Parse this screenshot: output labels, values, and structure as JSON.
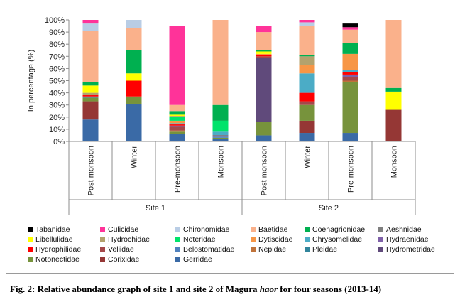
{
  "chart_data": {
    "type": "bar",
    "stacked": true,
    "percent": true,
    "ylabel": "In percentage (%)",
    "ylim": [
      0,
      100
    ],
    "y_ticks": [
      "0%",
      "10%",
      "20%",
      "30%",
      "40%",
      "50%",
      "60%",
      "70%",
      "80%",
      "90%",
      "100%"
    ],
    "grid": false,
    "legend_position": "bottom",
    "groups": [
      {
        "name": "Site 1",
        "categories": [
          "Post monsoon",
          "Winter",
          "Pre-monsoon",
          "Monsoon"
        ]
      },
      {
        "name": "Site 2",
        "categories": [
          "Post monsoon",
          "Winter",
          "Pre-monsoon",
          "Monsoon"
        ]
      }
    ],
    "categories": [
      "Post monsoon",
      "Winter",
      "Pre-monsoon",
      "Monsoon",
      "Post monsoon",
      "Winter",
      "Pre-monsoon",
      "Monsoon"
    ],
    "series": [
      {
        "name": "Gerridae",
        "color": "#3A6AA6",
        "values": [
          18,
          31,
          6,
          2,
          5,
          7,
          7,
          0
        ]
      },
      {
        "name": "Corixidae",
        "color": "#953735",
        "values": [
          15,
          0,
          0,
          0,
          0,
          10,
          0,
          26
        ]
      },
      {
        "name": "Notonectidae",
        "color": "#77933C",
        "values": [
          3,
          6,
          2,
          1,
          11,
          13,
          42,
          0
        ]
      },
      {
        "name": "Hydrometridae",
        "color": "#604A7B",
        "values": [
          0,
          0,
          0,
          0,
          53,
          0,
          0,
          0
        ]
      },
      {
        "name": "Pleidae",
        "color": "#31859C",
        "values": [
          0,
          0,
          0,
          0,
          0,
          0,
          0,
          0
        ]
      },
      {
        "name": "Nepidae",
        "color": "#C0733A",
        "values": [
          0,
          0,
          1,
          0,
          0,
          0,
          1,
          0
        ]
      },
      {
        "name": "Belostomatidae",
        "color": "#4F81BD",
        "values": [
          1,
          0,
          0,
          1,
          0,
          0,
          0,
          0
        ]
      },
      {
        "name": "Veliidae",
        "color": "#A5484A",
        "values": [
          0,
          0,
          3,
          1,
          1,
          3,
          3,
          0
        ]
      },
      {
        "name": "Hydraenidae",
        "color": "#7F60A8",
        "values": [
          0,
          0,
          1,
          0,
          0,
          0,
          2,
          0
        ]
      },
      {
        "name": "Hydrophilidae",
        "color": "#FF0000",
        "values": [
          1,
          13,
          1,
          0,
          1,
          7,
          2,
          0
        ]
      },
      {
        "name": "Chrysomelidae",
        "color": "#4BACC6",
        "values": [
          0,
          0,
          1,
          3,
          0,
          16,
          2,
          0
        ]
      },
      {
        "name": "Dytiscidae",
        "color": "#F79646",
        "values": [
          0,
          0,
          2,
          0,
          1,
          7,
          13,
          0
        ]
      },
      {
        "name": "Noteridae",
        "color": "#00E36B",
        "values": [
          0,
          0,
          3,
          9,
          0,
          0,
          0,
          0
        ]
      },
      {
        "name": "Hydrochidae",
        "color": "#B3A26D",
        "values": [
          2,
          0,
          1,
          0,
          0,
          7,
          0,
          0
        ]
      },
      {
        "name": "Libellulidae",
        "color": "#FFFF00",
        "values": [
          6,
          6,
          1,
          0,
          2,
          0,
          0,
          15
        ]
      },
      {
        "name": "Aeshnidae",
        "color": "#7F7F7F",
        "values": [
          0,
          0,
          0,
          0,
          0,
          0,
          0,
          0
        ]
      },
      {
        "name": "Coenagrionidae",
        "color": "#00B050",
        "values": [
          3,
          19,
          3,
          13,
          1,
          1,
          9,
          3
        ]
      },
      {
        "name": "Baetidae",
        "color": "#FAB18B",
        "values": [
          42,
          18,
          5,
          70,
          15,
          24,
          11,
          56
        ]
      },
      {
        "name": "Chironomidae",
        "color": "#B9CDE5",
        "values": [
          6,
          7,
          0,
          0,
          0,
          3,
          0,
          0
        ]
      },
      {
        "name": "Culicidae",
        "color": "#FF3399",
        "values": [
          3,
          0,
          65,
          0,
          5,
          2,
          2,
          0
        ]
      },
      {
        "name": "Tabanidae",
        "color": "#000000",
        "values": [
          0,
          0,
          0,
          0,
          0,
          0,
          3,
          0
        ]
      }
    ],
    "legend_order": [
      "Tabanidae",
      "Culicidae",
      "Chironomidae",
      "Baetidae",
      "Coenagrionidae",
      "Aeshnidae",
      "Libellulidae",
      "Hydrochidae",
      "Noteridae",
      "Dytiscidae",
      "Chrysomelidae",
      "Hydraenidae",
      "Hydrophilidae",
      "Veliidae",
      "Belostomatidae",
      "Nepidae",
      "Pleidae",
      "Hydrometridae",
      "Notonectidae",
      "Corixidae",
      "Gerridae"
    ]
  },
  "caption": {
    "prefix": "Fig. 2: Relative abundance graph of site 1 and site 2 of Magura ",
    "italic": "haor",
    "suffix": " for four seasons (2013-14)"
  }
}
